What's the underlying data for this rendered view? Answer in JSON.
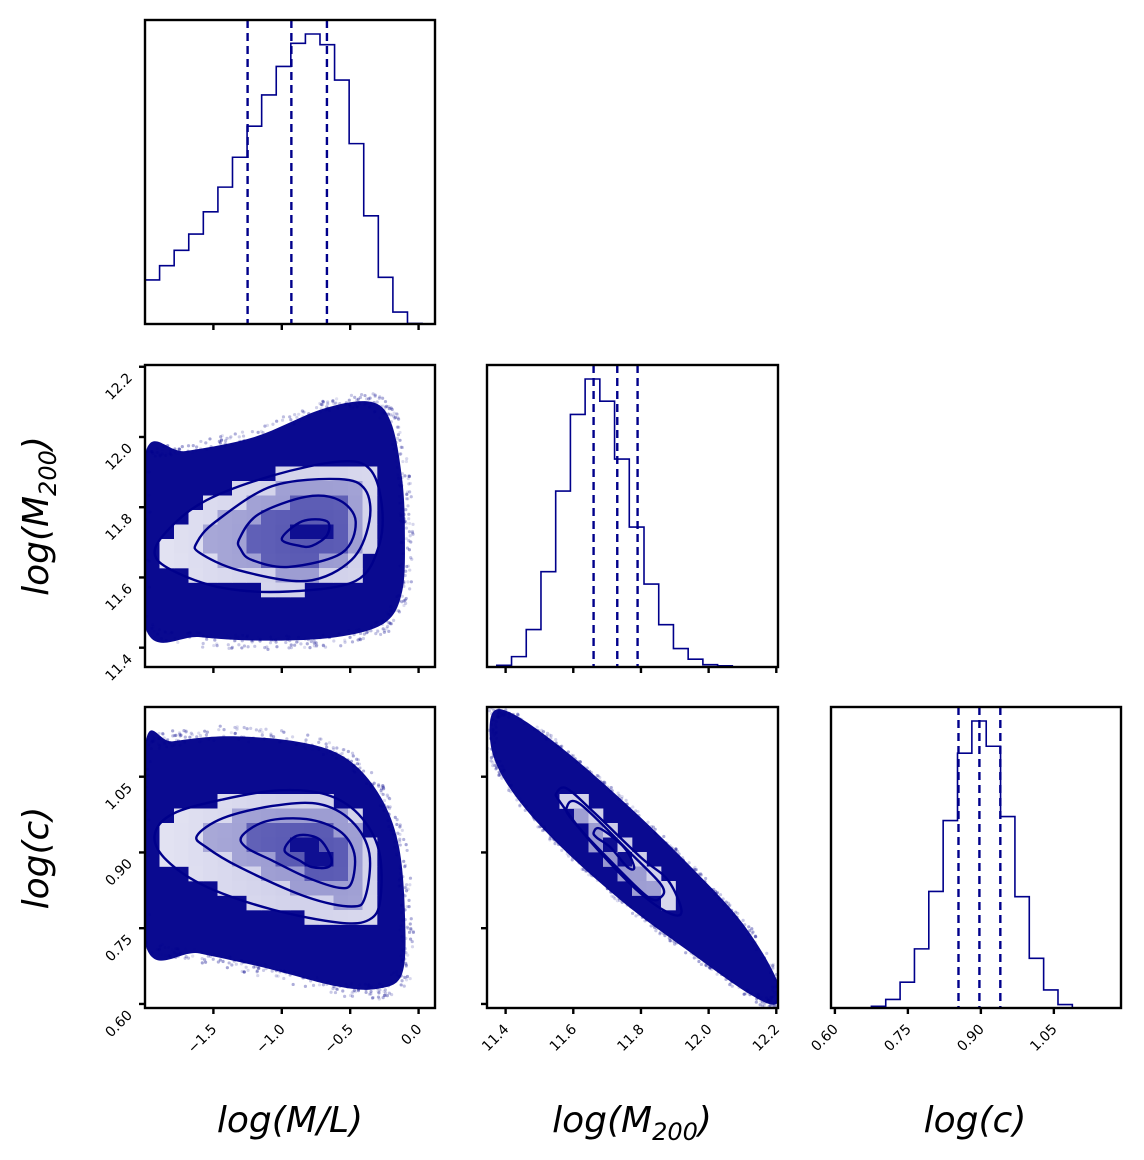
{
  "chart_data": {
    "type": "corner",
    "title": "",
    "color": "#00008b",
    "frame_color": "#000000",
    "parameters": [
      {
        "key": "ml",
        "label_main": "log(M/L)",
        "label_parts": [
          "log(M/L)",
          "",
          ")"
        ],
        "range": [
          -2.0,
          0.12
        ],
        "ticks": [
          -1.5,
          -1.0,
          -0.5,
          0.0
        ],
        "tick_labels": [
          "−1.5",
          "−1.0",
          "−0.5",
          "0.0"
        ]
      },
      {
        "key": "m200",
        "label_main": "log(M",
        "label_sub": "200",
        "label_end": ")",
        "range": [
          11.345,
          12.205
        ],
        "ticks": [
          11.4,
          11.6,
          11.8,
          12.0,
          12.2
        ],
        "tick_labels": [
          "11.4",
          "11.6",
          "11.8",
          "12.0",
          "12.2"
        ]
      },
      {
        "key": "c",
        "label_main": "log(c)",
        "range": [
          0.592,
          1.188
        ],
        "ticks": [
          0.6,
          0.75,
          0.9,
          1.05
        ],
        "tick_labels": [
          "0.60",
          "0.75",
          "0.90",
          "1.05"
        ]
      }
    ],
    "histograms": [
      {
        "param": "ml",
        "bin_start": -2.0,
        "bin_width": 0.1066,
        "values": [
          0.152,
          0.201,
          0.254,
          0.31,
          0.387,
          0.472,
          0.575,
          0.682,
          0.79,
          0.888,
          0.968,
          1.0,
          0.963,
          0.841,
          0.622,
          0.373,
          0.161,
          0.041,
          0.002
        ],
        "quantiles": [
          -1.25,
          -0.93,
          -0.67
        ]
      },
      {
        "param": "m200",
        "bin_start": 11.374,
        "bin_width": 0.0435,
        "values": [
          0.006,
          0.036,
          0.13,
          0.331,
          0.611,
          0.877,
          1.0,
          0.923,
          0.722,
          0.486,
          0.288,
          0.147,
          0.064,
          0.027,
          0.008,
          0.004
        ],
        "quantiles": [
          11.66,
          11.73,
          11.79
        ]
      },
      {
        "param": "c",
        "bin_start": 0.675,
        "bin_width": 0.0295,
        "values": [
          0.006,
          0.03,
          0.09,
          0.206,
          0.406,
          0.653,
          0.888,
          1.0,
          0.912,
          0.667,
          0.388,
          0.173,
          0.063,
          0.012
        ],
        "quantiles": [
          0.854,
          0.897,
          0.94
        ]
      }
    ],
    "joint": [
      {
        "x": "ml",
        "y": "m200",
        "peak": [
          -0.8,
          11.715
        ],
        "envelope": [
          [
            -2.0,
            11.46
          ],
          [
            -1.6,
            11.43
          ],
          [
            -1.1,
            11.42
          ],
          [
            -0.6,
            11.43
          ],
          [
            -0.25,
            11.47
          ],
          [
            -0.12,
            11.56
          ],
          [
            -0.1,
            11.72
          ],
          [
            -0.12,
            11.88
          ],
          [
            -0.2,
            12.04
          ],
          [
            -0.35,
            12.1
          ],
          [
            -0.7,
            12.08
          ],
          [
            -1.2,
            12.0
          ],
          [
            -1.7,
            11.96
          ],
          [
            -2.0,
            11.95
          ]
        ],
        "contours": [
          [
            [
              -1.93,
              11.67
            ],
            [
              -1.82,
              11.74
            ],
            [
              -1.55,
              11.82
            ],
            [
              -1.07,
              11.89
            ],
            [
              -0.58,
              11.93
            ],
            [
              -0.36,
              11.91
            ],
            [
              -0.27,
              11.81
            ],
            [
              -0.29,
              11.69
            ],
            [
              -0.46,
              11.59
            ],
            [
              -0.95,
              11.56
            ],
            [
              -1.43,
              11.57
            ],
            [
              -1.8,
              11.62
            ]
          ],
          [
            [
              -1.62,
              11.7
            ],
            [
              -1.48,
              11.76
            ],
            [
              -1.07,
              11.86
            ],
            [
              -0.58,
              11.88
            ],
            [
              -0.39,
              11.85
            ],
            [
              -0.36,
              11.76
            ],
            [
              -0.49,
              11.65
            ],
            [
              -0.82,
              11.59
            ],
            [
              -1.31,
              11.62
            ],
            [
              -1.6,
              11.67
            ]
          ],
          [
            [
              -1.31,
              11.71
            ],
            [
              -1.17,
              11.78
            ],
            [
              -0.82,
              11.83
            ],
            [
              -0.58,
              11.82
            ],
            [
              -0.46,
              11.76
            ],
            [
              -0.56,
              11.67
            ],
            [
              -0.95,
              11.63
            ],
            [
              -1.22,
              11.65
            ],
            [
              -1.3,
              11.68
            ]
          ],
          [
            [
              -1.0,
              11.71
            ],
            [
              -0.85,
              11.76
            ],
            [
              -0.67,
              11.76
            ],
            [
              -0.67,
              11.72
            ],
            [
              -0.78,
              11.69
            ],
            [
              -0.87,
              11.69
            ]
          ]
        ]
      },
      {
        "x": "ml",
        "y": "c",
        "peak": [
          -0.78,
          0.9
        ],
        "envelope": [
          [
            -2.0,
            0.72
          ],
          [
            -1.6,
            0.7
          ],
          [
            -1.1,
            0.67
          ],
          [
            -0.6,
            0.635
          ],
          [
            -0.3,
            0.63
          ],
          [
            -0.12,
            0.66
          ],
          [
            -0.1,
            0.78
          ],
          [
            -0.15,
            0.92
          ],
          [
            -0.3,
            1.02
          ],
          [
            -0.55,
            1.09
          ],
          [
            -0.9,
            1.12
          ],
          [
            -1.4,
            1.13
          ],
          [
            -1.8,
            1.12
          ],
          [
            -2.0,
            1.11
          ]
        ],
        "contours": [
          [
            [
              -1.93,
              0.933
            ],
            [
              -1.8,
              0.976
            ],
            [
              -1.43,
              1.005
            ],
            [
              -1.02,
              1.023
            ],
            [
              -0.68,
              1.015
            ],
            [
              -0.44,
              0.976
            ],
            [
              -0.29,
              0.904
            ],
            [
              -0.28,
              0.806
            ],
            [
              -0.36,
              0.767
            ],
            [
              -0.58,
              0.761
            ],
            [
              -1.07,
              0.787
            ],
            [
              -1.55,
              0.832
            ],
            [
              -1.84,
              0.884
            ]
          ],
          [
            [
              -1.62,
              0.933
            ],
            [
              -1.43,
              0.968
            ],
            [
              -1.07,
              0.992
            ],
            [
              -0.73,
              0.996
            ],
            [
              -0.49,
              0.962
            ],
            [
              -0.36,
              0.898
            ],
            [
              -0.39,
              0.812
            ],
            [
              -0.49,
              0.793
            ],
            [
              -0.82,
              0.812
            ],
            [
              -1.31,
              0.871
            ],
            [
              -1.55,
              0.91
            ]
          ],
          [
            [
              -1.29,
              0.933
            ],
            [
              -1.11,
              0.962
            ],
            [
              -0.82,
              0.966
            ],
            [
              -0.58,
              0.943
            ],
            [
              -0.47,
              0.898
            ],
            [
              -0.49,
              0.84
            ],
            [
              -0.58,
              0.83
            ],
            [
              -0.82,
              0.851
            ],
            [
              -1.07,
              0.884
            ],
            [
              -1.26,
              0.91
            ]
          ],
          [
            [
              -0.98,
              0.904
            ],
            [
              -0.89,
              0.933
            ],
            [
              -0.73,
              0.927
            ],
            [
              -0.64,
              0.89
            ],
            [
              -0.66,
              0.871
            ],
            [
              -0.78,
              0.871
            ],
            [
              -0.87,
              0.884
            ]
          ]
        ]
      },
      {
        "x": "m200",
        "y": "c",
        "peak": [
          11.715,
          0.9
        ],
        "envelope": [
          [
            11.36,
            1.175
          ],
          [
            11.42,
            1.175
          ],
          [
            11.56,
            1.11
          ],
          [
            11.75,
            1.0
          ],
          [
            11.95,
            0.87
          ],
          [
            12.1,
            0.76
          ],
          [
            12.2,
            0.65
          ],
          [
            12.2,
            0.6
          ],
          [
            12.12,
            0.62
          ],
          [
            11.95,
            0.7
          ],
          [
            11.75,
            0.8
          ],
          [
            11.55,
            0.92
          ],
          [
            11.42,
            1.02
          ],
          [
            11.36,
            1.1
          ]
        ],
        "contours": [
          [
            [
              11.55,
              1.017
            ],
            [
              11.58,
              1.027
            ],
            [
              11.66,
              0.98
            ],
            [
              11.8,
              0.89
            ],
            [
              11.88,
              0.845
            ],
            [
              11.92,
              0.783
            ],
            [
              11.88,
              0.781
            ],
            [
              11.78,
              0.83
            ],
            [
              11.64,
              0.93
            ],
            [
              11.56,
              1.001
            ]
          ],
          [
            [
              11.58,
              0.988
            ],
            [
              11.62,
              0.996
            ],
            [
              11.77,
              0.898
            ],
            [
              11.86,
              0.836
            ],
            [
              11.86,
              0.812
            ],
            [
              11.82,
              0.812
            ],
            [
              11.7,
              0.89
            ],
            [
              11.6,
              0.962
            ]
          ],
          [
            [
              11.66,
              0.939
            ],
            [
              11.68,
              0.947
            ],
            [
              11.75,
              0.91
            ],
            [
              11.78,
              0.871
            ],
            [
              11.76,
              0.871
            ],
            [
              11.71,
              0.91
            ],
            [
              11.67,
              0.929
            ]
          ]
        ]
      }
    ]
  },
  "labels": {
    "x_ml": "log(M/L)",
    "x_m200_main": "log(M",
    "x_m200_sub": "200",
    "x_m200_end": ")",
    "x_c": "log(c)",
    "y_m200_main": "log(M",
    "y_m200_sub": "200",
    "y_m200_end": ")",
    "y_c": "log(c)"
  }
}
